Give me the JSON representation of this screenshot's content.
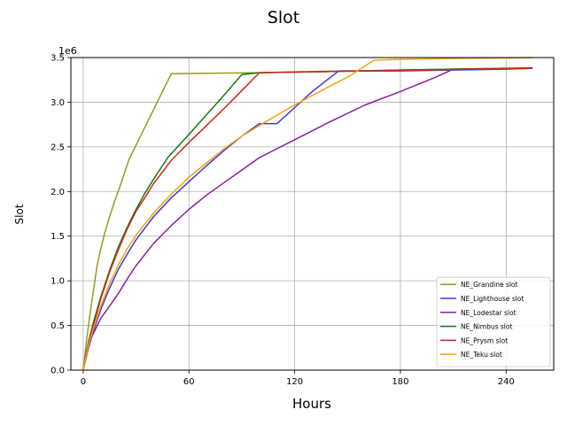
{
  "chart_data": {
    "type": "line",
    "title": "Slot",
    "xlabel": "Hours",
    "ylabel": "Slot",
    "y_offset_label": "1e6",
    "y_multiplier": 1000000,
    "xlim": [
      -7,
      267
    ],
    "ylim": [
      0,
      3.5
    ],
    "x_ticks": [
      0,
      60,
      120,
      180,
      240
    ],
    "y_ticks": [
      0.0,
      0.5,
      1.0,
      1.5,
      2.0,
      2.5,
      3.0,
      3.5
    ],
    "grid": true,
    "legend_position": "lower-right",
    "series": [
      {
        "name": "NE_Grandine slot",
        "color": "#9a9a1a",
        "x": [
          0,
          2,
          4,
          6,
          8,
          10,
          12,
          15,
          18,
          22,
          26,
          30,
          35,
          40,
          45,
          50,
          75,
          100,
          120,
          150,
          180,
          210,
          240
        ],
        "y": [
          0,
          0.35,
          0.65,
          0.92,
          1.18,
          1.36,
          1.52,
          1.72,
          1.9,
          2.12,
          2.36,
          2.52,
          2.72,
          2.92,
          3.12,
          3.32,
          3.325,
          3.33,
          3.34,
          3.35,
          3.36,
          3.37,
          3.38
        ]
      },
      {
        "name": "NE_Lighthouse slot",
        "color": "#3a3ae0",
        "x": [
          0,
          3,
          6,
          10,
          15,
          20,
          25,
          30,
          40,
          50,
          60,
          70,
          80,
          90,
          100,
          105,
          110,
          120,
          130,
          145,
          180,
          210,
          240,
          255
        ],
        "y": [
          0,
          0.25,
          0.45,
          0.68,
          0.92,
          1.13,
          1.3,
          1.46,
          1.72,
          1.93,
          2.11,
          2.29,
          2.46,
          2.62,
          2.76,
          2.76,
          2.76,
          2.94,
          3.12,
          3.35,
          3.35,
          3.36,
          3.37,
          3.38
        ]
      },
      {
        "name": "NE_Lodestar slot",
        "color": "#8a1fa0",
        "x": [
          0,
          2,
          5,
          10,
          15,
          20,
          25,
          30,
          40,
          50,
          60,
          70,
          80,
          90,
          100,
          120,
          140,
          160,
          180,
          200,
          210,
          240,
          255
        ],
        "y": [
          0,
          0.22,
          0.38,
          0.58,
          0.72,
          0.86,
          1.02,
          1.17,
          1.42,
          1.62,
          1.8,
          1.96,
          2.1,
          2.24,
          2.38,
          2.58,
          2.78,
          2.97,
          3.12,
          3.28,
          3.37,
          3.38,
          3.385
        ]
      },
      {
        "name": "NE_Nimbus slot",
        "color": "#137a13",
        "x": [
          0,
          3,
          6,
          10,
          15,
          20,
          25,
          30,
          35,
          40,
          48,
          60,
          70,
          80,
          90,
          100,
          130,
          160,
          180,
          210,
          240,
          255
        ],
        "y": [
          0,
          0.32,
          0.55,
          0.82,
          1.12,
          1.38,
          1.6,
          1.8,
          1.98,
          2.14,
          2.38,
          2.64,
          2.86,
          3.08,
          3.31,
          3.33,
          3.34,
          3.35,
          3.36,
          3.37,
          3.375,
          3.38
        ]
      },
      {
        "name": "NE_Prysm slot",
        "color": "#c92a1a",
        "x": [
          0,
          3,
          6,
          10,
          15,
          20,
          25,
          30,
          35,
          40,
          50,
          60,
          70,
          80,
          90,
          100,
          130,
          160,
          180,
          210,
          240,
          255
        ],
        "y": [
          0,
          0.3,
          0.52,
          0.8,
          1.1,
          1.35,
          1.58,
          1.78,
          1.93,
          2.09,
          2.35,
          2.55,
          2.74,
          2.93,
          3.13,
          3.33,
          3.34,
          3.35,
          3.355,
          3.365,
          3.375,
          3.38
        ]
      },
      {
        "name": "NE_Teku slot",
        "color": "#f5a30a",
        "x": [
          0,
          3,
          6,
          10,
          15,
          20,
          25,
          30,
          40,
          50,
          60,
          70,
          80,
          90,
          100,
          120,
          140,
          150,
          165,
          180,
          210,
          240,
          255
        ],
        "y": [
          0,
          0.28,
          0.48,
          0.72,
          0.97,
          1.18,
          1.36,
          1.51,
          1.76,
          1.97,
          2.16,
          2.32,
          2.48,
          2.62,
          2.74,
          2.97,
          3.18,
          3.28,
          3.47,
          3.48,
          3.49,
          3.495,
          3.5
        ]
      }
    ]
  }
}
